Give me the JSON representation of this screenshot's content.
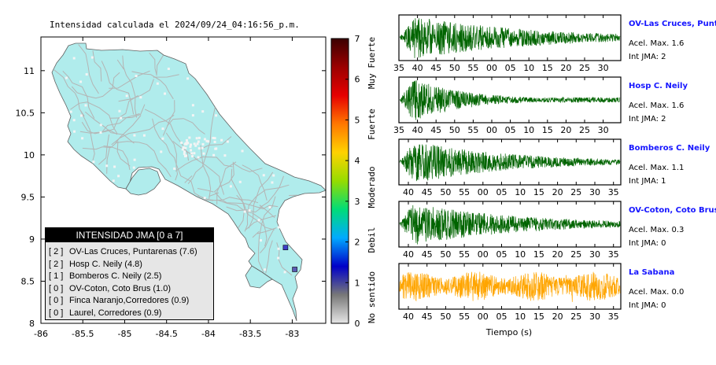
{
  "title": "Intensidad calculada el 2024/09/24_04:16:56_p.m.",
  "map": {
    "x_ticks": [
      "-86",
      "-85.5",
      "-85",
      "-84.5",
      "-84",
      "-83.5",
      "-83"
    ],
    "y_ticks": [
      "11",
      "10.5",
      "10",
      "9.5",
      "9",
      "8.5",
      "8"
    ],
    "land_color": "#b0ecec",
    "roads_color": "#b4b4b4",
    "stations": [
      {
        "lon": -83.08,
        "lat": 8.9,
        "color": "#3e3ec8"
      },
      {
        "lon": -82.97,
        "lat": 8.64,
        "color": "#5a5ab4"
      }
    ]
  },
  "legend": {
    "title": "INTENSIDAD JMA [0 a 7]",
    "items": [
      {
        "level": "[ 2 ]",
        "text": "OV-Las Cruces, Puntarenas (7.6)"
      },
      {
        "level": "[ 2 ]",
        "text": "Hosp C. Neily (4.8)"
      },
      {
        "level": "[ 1 ]",
        "text": "Bomberos C. Neily (2.5)"
      },
      {
        "level": "[ 0 ]",
        "text": "OV-Coton, Coto Brus (1.0)"
      },
      {
        "level": "[ 0 ]",
        "text": "Finca Naranjo,Corredores (0.9)"
      },
      {
        "level": "[ 0 ]",
        "text": "Laurel, Corredores (0.9)"
      }
    ]
  },
  "colorbar": {
    "ticks": [
      "7",
      "6",
      "5",
      "4",
      "3",
      "2",
      "1",
      "0"
    ],
    "labels": [
      "Muy Fuerte",
      "Fuerte",
      "Moderado",
      "Debil",
      "No sentido"
    ],
    "colors": [
      "#e6e6e6",
      "#787878",
      "#0000c8",
      "#00aaff",
      "#00dc78",
      "#96dc00",
      "#ffd200",
      "#ff7800",
      "#e60000",
      "#9b0000",
      "#3c0000"
    ]
  },
  "chart_data": [
    {
      "type": "line",
      "station": "OV-Las Cruces, Puntar",
      "accel_label": "Acel. Max. 1.6",
      "jma_label": "Int JMA: 2",
      "x_ticks": [
        "35",
        "40",
        "45",
        "50",
        "55",
        "00",
        "05",
        "10",
        "15",
        "20",
        "25",
        "30"
      ],
      "color": "#006400",
      "seed": 11,
      "burst": 0.07,
      "decay": 0.55
    },
    {
      "type": "line",
      "station": "Hosp C. Neily",
      "accel_label": "Acel. Max. 1.6",
      "jma_label": "Int JMA: 2",
      "x_ticks": [
        "35",
        "40",
        "45",
        "50",
        "55",
        "00",
        "05",
        "10",
        "15",
        "20",
        "25",
        "30"
      ],
      "color": "#006400",
      "seed": 23,
      "burst": 0.06,
      "decay": 0.25
    },
    {
      "type": "line",
      "station": "Bomberos C. Neily",
      "accel_label": "Acel. Max. 1.1",
      "jma_label": "Int JMA: 1",
      "x_ticks": [
        "40",
        "45",
        "50",
        "55",
        "00",
        "05",
        "10",
        "15",
        "20",
        "25",
        "30",
        "35"
      ],
      "color": "#006400",
      "seed": 37,
      "burst": 0.07,
      "decay": 0.45
    },
    {
      "type": "line",
      "station": "OV-Coton, Coto Brus",
      "accel_label": "Acel. Max. 0.3",
      "jma_label": "Int JMA: 0",
      "x_ticks": [
        "40",
        "45",
        "50",
        "55",
        "00",
        "05",
        "10",
        "15",
        "20",
        "25",
        "30",
        "35"
      ],
      "color": "#006400",
      "seed": 53,
      "burst": 0.06,
      "decay": 0.5
    },
    {
      "type": "line",
      "station": "La Sabana",
      "accel_label": "Acel. Max. 0.0",
      "jma_label": "Int JMA: 0",
      "x_ticks": [
        "40",
        "45",
        "50",
        "55",
        "00",
        "05",
        "10",
        "15",
        "20",
        "25",
        "30",
        "35"
      ],
      "color": "#ffa500",
      "seed": 71,
      "burst": 0.0,
      "decay": 0.0
    }
  ],
  "xlabel": "Tiempo (s)"
}
